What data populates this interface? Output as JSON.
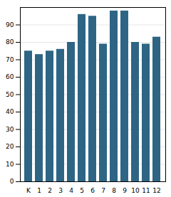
{
  "chart_data": {
    "type": "bar",
    "categories": [
      "K",
      "1",
      "2",
      "3",
      "4",
      "5",
      "6",
      "7",
      "8",
      "9",
      "10",
      "11",
      "12"
    ],
    "values": [
      75,
      73,
      75,
      76,
      80,
      96,
      95,
      79,
      98,
      98,
      80,
      79,
      83
    ],
    "color": "#2e6584",
    "ylim": [
      0,
      100
    ],
    "yticks": [
      0,
      10,
      20,
      30,
      40,
      50,
      60,
      70,
      80,
      90
    ],
    "grid": true
  }
}
